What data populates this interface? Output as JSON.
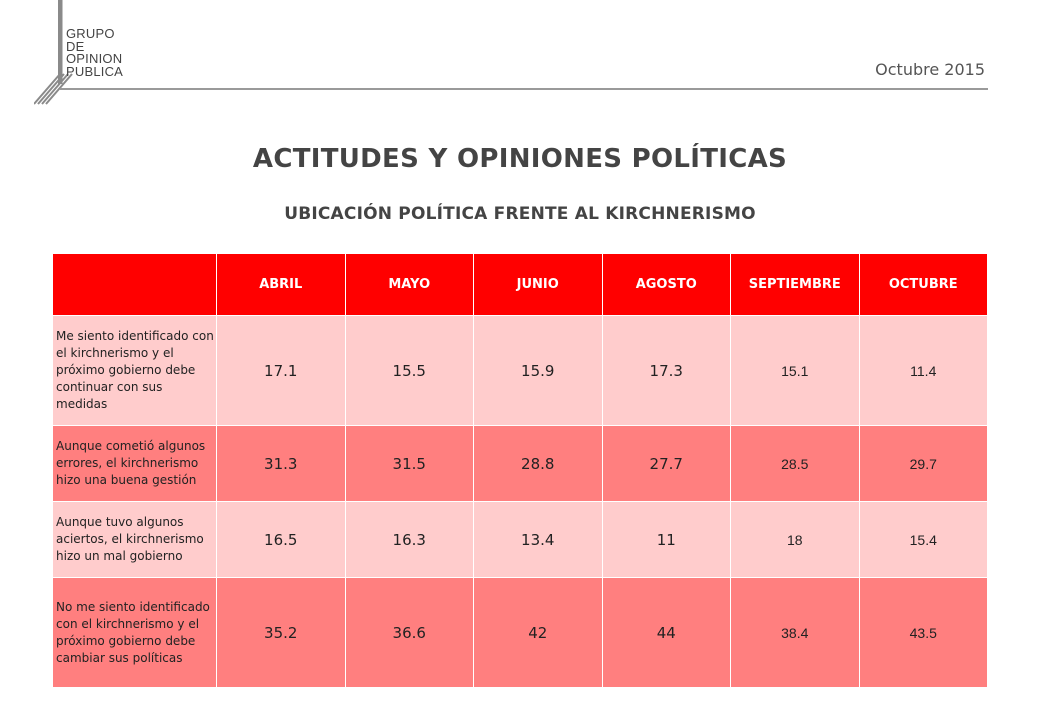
{
  "logo": {
    "line1": "GRUPO",
    "line2": "DE",
    "line3": "OPINION",
    "line4": "PUBLICA"
  },
  "date": "Octubre 2015",
  "title": "ACTITUDES Y OPINIONES POLÍTICAS",
  "subtitle": "UBICACIÓN POLÍTICA FRENTE AL KIRCHNERISMO",
  "table": {
    "columns": [
      "",
      "ABRIL",
      "MAYO",
      "JUNIO",
      "AGOSTO",
      "SEPTIEMBRE",
      "OCTUBRE"
    ],
    "rows": [
      {
        "label": "Me siento identificado con el kirchnerismo y el próximo gobierno debe continuar con sus medidas",
        "values": [
          "17.1",
          "15.5",
          "15.9",
          "17.3",
          "15.1",
          "11.4"
        ]
      },
      {
        "label": "Aunque cometió algunos errores, el kirchnerismo hizo una buena gestión",
        "values": [
          "31.3",
          "31.5",
          "28.8",
          "27.7",
          "28.5",
          "29.7"
        ]
      },
      {
        "label": "Aunque tuvo algunos aciertos, el kirchnerismo hizo un mal gobierno",
        "values": [
          "16.5",
          "16.3",
          "13.4",
          "11",
          "18",
          "15.4"
        ]
      },
      {
        "label": "No me siento identificado con el kirchnerismo y el próximo gobierno debe cambiar sus políticas",
        "values": [
          "35.2",
          "36.6",
          "42",
          "44",
          "38.4",
          "43.5"
        ]
      }
    ]
  },
  "colors": {
    "header_red": "#ff0000",
    "row_light": "#ffcccc",
    "row_dark": "#ff7f7f"
  }
}
